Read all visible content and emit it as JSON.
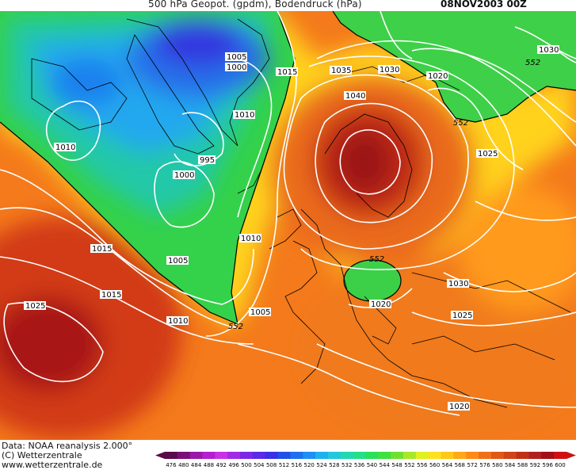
{
  "header": {
    "title": "500 hPa Geopot. (gpdm), Bodendruck (hPa)",
    "date": "08NOV2003 00Z"
  },
  "footer": {
    "data_source": "Data: NOAA reanalysis 2.000°",
    "copyright": "(C) Wetterzentrale",
    "website": "www.wetterzentrale.de"
  },
  "legend": {
    "ticks": [
      "476",
      "480",
      "484",
      "488",
      "492",
      "496",
      "500",
      "504",
      "508",
      "512",
      "516",
      "520",
      "524",
      "528",
      "532",
      "536",
      "540",
      "544",
      "548",
      "552",
      "556",
      "560",
      "564",
      "568",
      "572",
      "576",
      "580",
      "584",
      "588",
      "592",
      "596",
      "600"
    ],
    "colors": [
      "#5a0a4a",
      "#7a0e78",
      "#9a18a8",
      "#b41ed0",
      "#c832e6",
      "#a02ae6",
      "#7a28e6",
      "#5a2ae6",
      "#3a30e6",
      "#2050e6",
      "#1e70ee",
      "#1e90f2",
      "#20b0f0",
      "#22c8dc",
      "#22d8b0",
      "#22e088",
      "#28e05a",
      "#40e040",
      "#70e030",
      "#a8e828",
      "#e0f020",
      "#ffe020",
      "#ffc818",
      "#ffa818",
      "#ff8a18",
      "#f07018",
      "#e05818",
      "#d04418",
      "#c03018",
      "#b02020",
      "#a01018",
      "#d01010"
    ]
  },
  "pressure_labels": [
    "1005",
    "1000",
    "1015",
    "1035",
    "1030",
    "1020",
    "1030",
    "1010",
    "1040",
    "995",
    "1025",
    "1010",
    "1000",
    "1015",
    "1010",
    "1015",
    "1005",
    "1030",
    "1025",
    "1010",
    "1005",
    "1020",
    "1025",
    "1020"
  ],
  "geopotential_labels": [
    "552",
    "552",
    "552",
    "552"
  ],
  "map_colors": {
    "land_outline": "#000000",
    "isobar": "#ffffff",
    "contour_552": "#000000"
  }
}
